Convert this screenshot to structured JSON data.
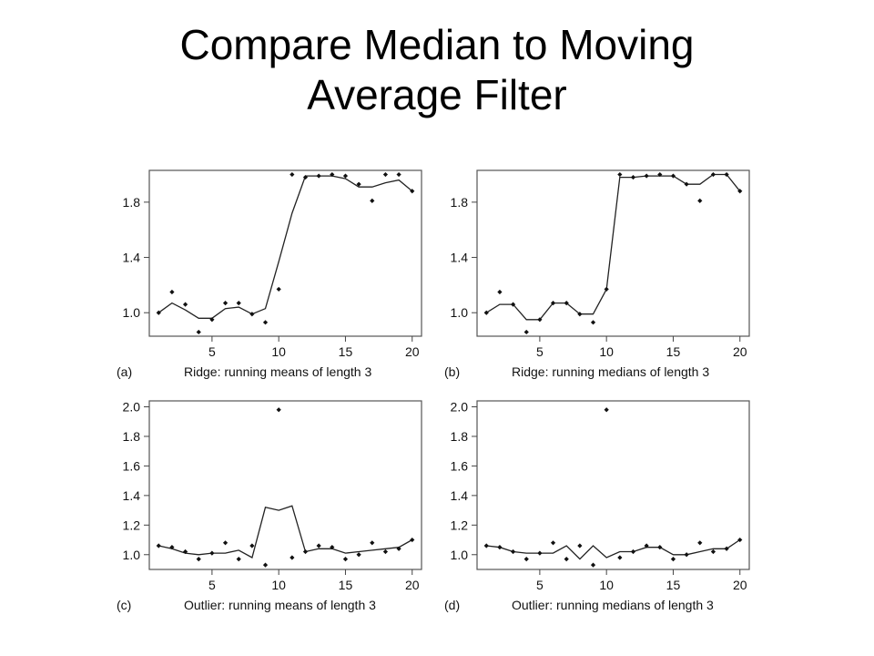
{
  "slide": {
    "title_line1": "Compare Median to Moving",
    "title_line2": "Average Filter"
  },
  "chart_data": [
    {
      "type": "scatter",
      "panel_label": "(a)",
      "caption": "Ridge: running means of length 3",
      "x": [
        1,
        2,
        3,
        4,
        5,
        6,
        7,
        8,
        9,
        10,
        11,
        12,
        13,
        14,
        15,
        16,
        17,
        18,
        19,
        20
      ],
      "points": [
        1.0,
        1.15,
        1.06,
        0.86,
        0.95,
        1.07,
        1.07,
        0.99,
        0.93,
        1.17,
        2.0,
        1.98,
        1.99,
        2.0,
        1.99,
        1.93,
        1.81,
        2.0,
        2.0,
        1.88
      ],
      "smooth": [
        1.0,
        1.07,
        1.02,
        0.96,
        0.96,
        1.03,
        1.04,
        0.99,
        1.03,
        1.37,
        1.72,
        1.99,
        1.99,
        1.99,
        1.97,
        1.91,
        1.91,
        1.94,
        1.96,
        1.88
      ],
      "xticks": [
        5,
        10,
        15,
        20
      ],
      "yticks": [
        1.0,
        1.4,
        1.8
      ],
      "ytick_labels": [
        "1.0",
        "1.4",
        "1.8"
      ],
      "xlim": [
        0.3,
        20.7
      ],
      "ylim": [
        0.83,
        2.03
      ]
    },
    {
      "type": "scatter",
      "panel_label": "(b)",
      "caption": "Ridge: running medians of length 3",
      "x": [
        1,
        2,
        3,
        4,
        5,
        6,
        7,
        8,
        9,
        10,
        11,
        12,
        13,
        14,
        15,
        16,
        17,
        18,
        19,
        20
      ],
      "points": [
        1.0,
        1.15,
        1.06,
        0.86,
        0.95,
        1.07,
        1.07,
        0.99,
        0.93,
        1.17,
        2.0,
        1.98,
        1.99,
        2.0,
        1.99,
        1.93,
        1.81,
        2.0,
        2.0,
        1.88
      ],
      "smooth": [
        1.0,
        1.06,
        1.06,
        0.95,
        0.95,
        1.07,
        1.07,
        0.99,
        0.99,
        1.17,
        1.98,
        1.98,
        1.99,
        1.99,
        1.99,
        1.93,
        1.93,
        2.0,
        2.0,
        1.88
      ],
      "xticks": [
        5,
        10,
        15,
        20
      ],
      "yticks": [
        1.0,
        1.4,
        1.8
      ],
      "ytick_labels": [
        "1.0",
        "1.4",
        "1.8"
      ],
      "xlim": [
        0.3,
        20.7
      ],
      "ylim": [
        0.83,
        2.03
      ]
    },
    {
      "type": "scatter",
      "panel_label": "(c)",
      "caption": "Outlier: running means of length 3",
      "x": [
        1,
        2,
        3,
        4,
        5,
        6,
        7,
        8,
        9,
        10,
        11,
        12,
        13,
        14,
        15,
        16,
        17,
        18,
        19,
        20
      ],
      "points": [
        1.06,
        1.05,
        1.02,
        0.97,
        1.01,
        1.08,
        0.97,
        1.06,
        0.93,
        1.98,
        0.98,
        1.02,
        1.06,
        1.05,
        0.97,
        1.0,
        1.08,
        1.02,
        1.04,
        1.1
      ],
      "smooth": [
        1.06,
        1.04,
        1.01,
        1.0,
        1.01,
        1.01,
        1.03,
        0.98,
        1.32,
        1.3,
        1.33,
        1.02,
        1.04,
        1.04,
        1.01,
        1.02,
        1.03,
        1.04,
        1.05,
        1.1
      ],
      "xticks": [
        5,
        10,
        15,
        20
      ],
      "yticks": [
        1.0,
        1.2,
        1.4,
        1.6,
        1.8,
        2.0
      ],
      "ytick_labels": [
        "1.0",
        "1.2",
        "1.4",
        "1.6",
        "1.8",
        "2.0"
      ],
      "xlim": [
        0.3,
        20.7
      ],
      "ylim": [
        0.9,
        2.04
      ]
    },
    {
      "type": "scatter",
      "panel_label": "(d)",
      "caption": "Outlier: running medians of length 3",
      "x": [
        1,
        2,
        3,
        4,
        5,
        6,
        7,
        8,
        9,
        10,
        11,
        12,
        13,
        14,
        15,
        16,
        17,
        18,
        19,
        20
      ],
      "points": [
        1.06,
        1.05,
        1.02,
        0.97,
        1.01,
        1.08,
        0.97,
        1.06,
        0.93,
        1.98,
        0.98,
        1.02,
        1.06,
        1.05,
        0.97,
        1.0,
        1.08,
        1.02,
        1.04,
        1.1
      ],
      "smooth": [
        1.06,
        1.05,
        1.02,
        1.01,
        1.01,
        1.01,
        1.06,
        0.97,
        1.06,
        0.98,
        1.02,
        1.02,
        1.05,
        1.05,
        1.0,
        1.0,
        1.02,
        1.04,
        1.04,
        1.1
      ],
      "xticks": [
        5,
        10,
        15,
        20
      ],
      "yticks": [
        1.0,
        1.2,
        1.4,
        1.6,
        1.8,
        2.0
      ],
      "ytick_labels": [
        "1.0",
        "1.2",
        "1.4",
        "1.6",
        "1.8",
        "2.0"
      ],
      "xlim": [
        0.3,
        20.7
      ],
      "ylim": [
        0.9,
        2.04
      ]
    }
  ]
}
